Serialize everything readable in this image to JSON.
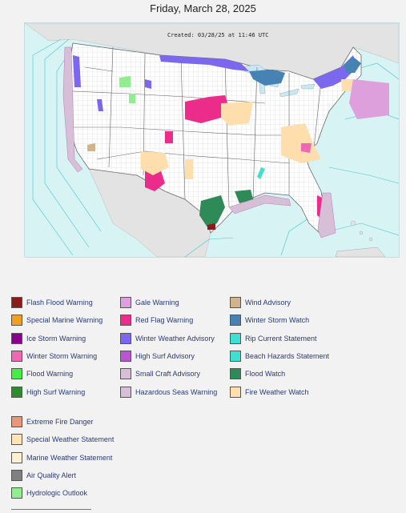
{
  "page": {
    "title": "Friday, March 28, 2025"
  },
  "map": {
    "created_stamp": "Created: 03/28/25 at 11:46 UTC",
    "colors": {
      "ocean": "#d7f3f4",
      "land": "#ffffff",
      "foreign_land": "#e3e3e3",
      "great_lakes": "#c9e8f5",
      "county_lines": "#c9c9c9",
      "state_lines": "#666666"
    }
  },
  "legend": {
    "columns": [
      [
        {
          "label": "Flash Flood Warning",
          "color": "#8b1a1a"
        },
        {
          "label": "Special Marine Warning",
          "color": "#f0a020"
        },
        {
          "label": "Ice Storm Warning",
          "color": "#8b008b"
        },
        {
          "label": "Winter Storm Warning",
          "color": "#ee68b4"
        },
        {
          "label": "Flood Warning",
          "color": "#44ee44"
        },
        {
          "label": "High Surf Warning",
          "color": "#2e8b2e"
        }
      ],
      [
        {
          "label": "Gale Warning",
          "color": "#dda0dd"
        },
        {
          "label": "Red Flag Warning",
          "color": "#ec2c8a"
        },
        {
          "label": "Winter Weather Advisory",
          "color": "#7b68ee"
        },
        {
          "label": "High Surf Advisory",
          "color": "#ba55d3"
        },
        {
          "label": "Small Craft Advisory",
          "color": "#d8bfd8"
        },
        {
          "label": "Hazardous Seas Warning",
          "color": "#d8bfd8"
        }
      ],
      [
        {
          "label": "Wind Advisory",
          "color": "#d2b48c"
        },
        {
          "label": "Winter Storm Watch",
          "color": "#4682b4"
        },
        {
          "label": "Rip Current Statement",
          "color": "#40e0d0"
        },
        {
          "label": "Beach Hazards Statement",
          "color": "#40e0d0"
        },
        {
          "label": "Flood Watch",
          "color": "#2e8b57"
        },
        {
          "label": "Fire Weather Watch",
          "color": "#ffdead"
        }
      ]
    ],
    "extra": [
      {
        "label": "Extreme Fire Danger",
        "color": "#e9967a"
      },
      {
        "label": "Special Weather Statement",
        "color": "#ffe4b5"
      },
      {
        "label": "Marine Weather Statement",
        "color": "#ffefd5"
      },
      {
        "label": "Air Quality Alert",
        "color": "#808080"
      },
      {
        "label": "Hydrologic Outlook",
        "color": "#90ee90"
      }
    ]
  }
}
